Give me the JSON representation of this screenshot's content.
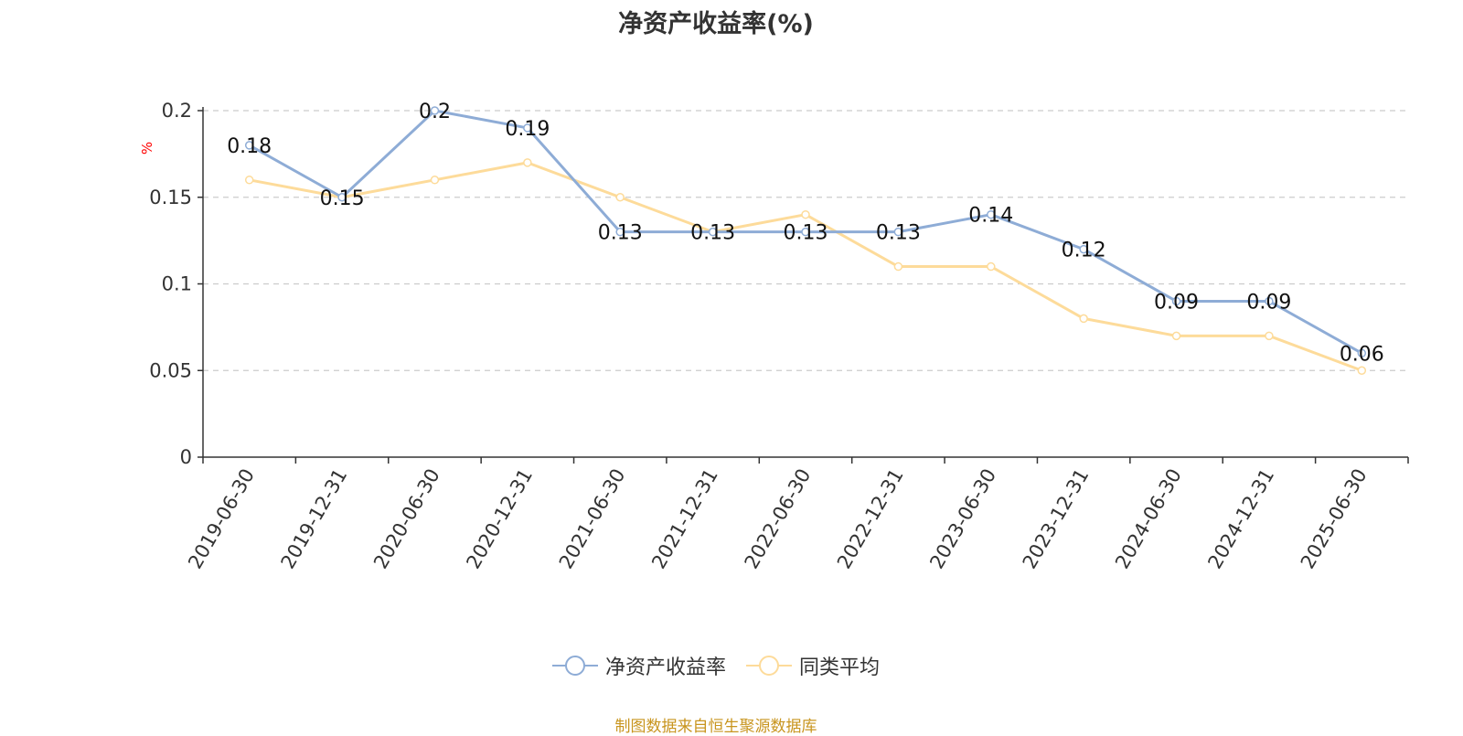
{
  "chart_data": {
    "type": "line",
    "title": "净资产收益率(%)",
    "ylabel": "%",
    "x": [
      "2019-06-30",
      "2019-12-31",
      "2020-06-30",
      "2020-12-31",
      "2021-06-30",
      "2021-12-31",
      "2022-06-30",
      "2022-12-31",
      "2023-06-30",
      "2023-12-31",
      "2024-06-30",
      "2024-12-31",
      "2025-06-30"
    ],
    "yticks": [
      "0",
      "0.05",
      "0.1",
      "0.15",
      "0.2"
    ],
    "ylim": [
      0,
      0.2
    ],
    "grid": true,
    "legend_position": "bottom",
    "series": [
      {
        "name": "净资产收益率",
        "color": "#8eacd6",
        "values": [
          0.18,
          0.15,
          0.2,
          0.19,
          0.13,
          0.13,
          0.13,
          0.13,
          0.14,
          0.12,
          0.09,
          0.09,
          0.06
        ],
        "labels": [
          "0.18",
          "0.15",
          "0.2",
          "0.19",
          "0.13",
          "0.13",
          "0.13",
          "0.13",
          "0.14",
          "0.12",
          "0.09",
          "0.09",
          "0.06"
        ]
      },
      {
        "name": "同类平均",
        "color": "#fddb9a",
        "values": [
          0.16,
          0.15,
          0.16,
          0.17,
          0.15,
          0.13,
          0.14,
          0.11,
          0.11,
          0.08,
          0.07,
          0.07,
          0.05
        ]
      }
    ]
  },
  "source_note": "制图数据来自恒生聚源数据库"
}
